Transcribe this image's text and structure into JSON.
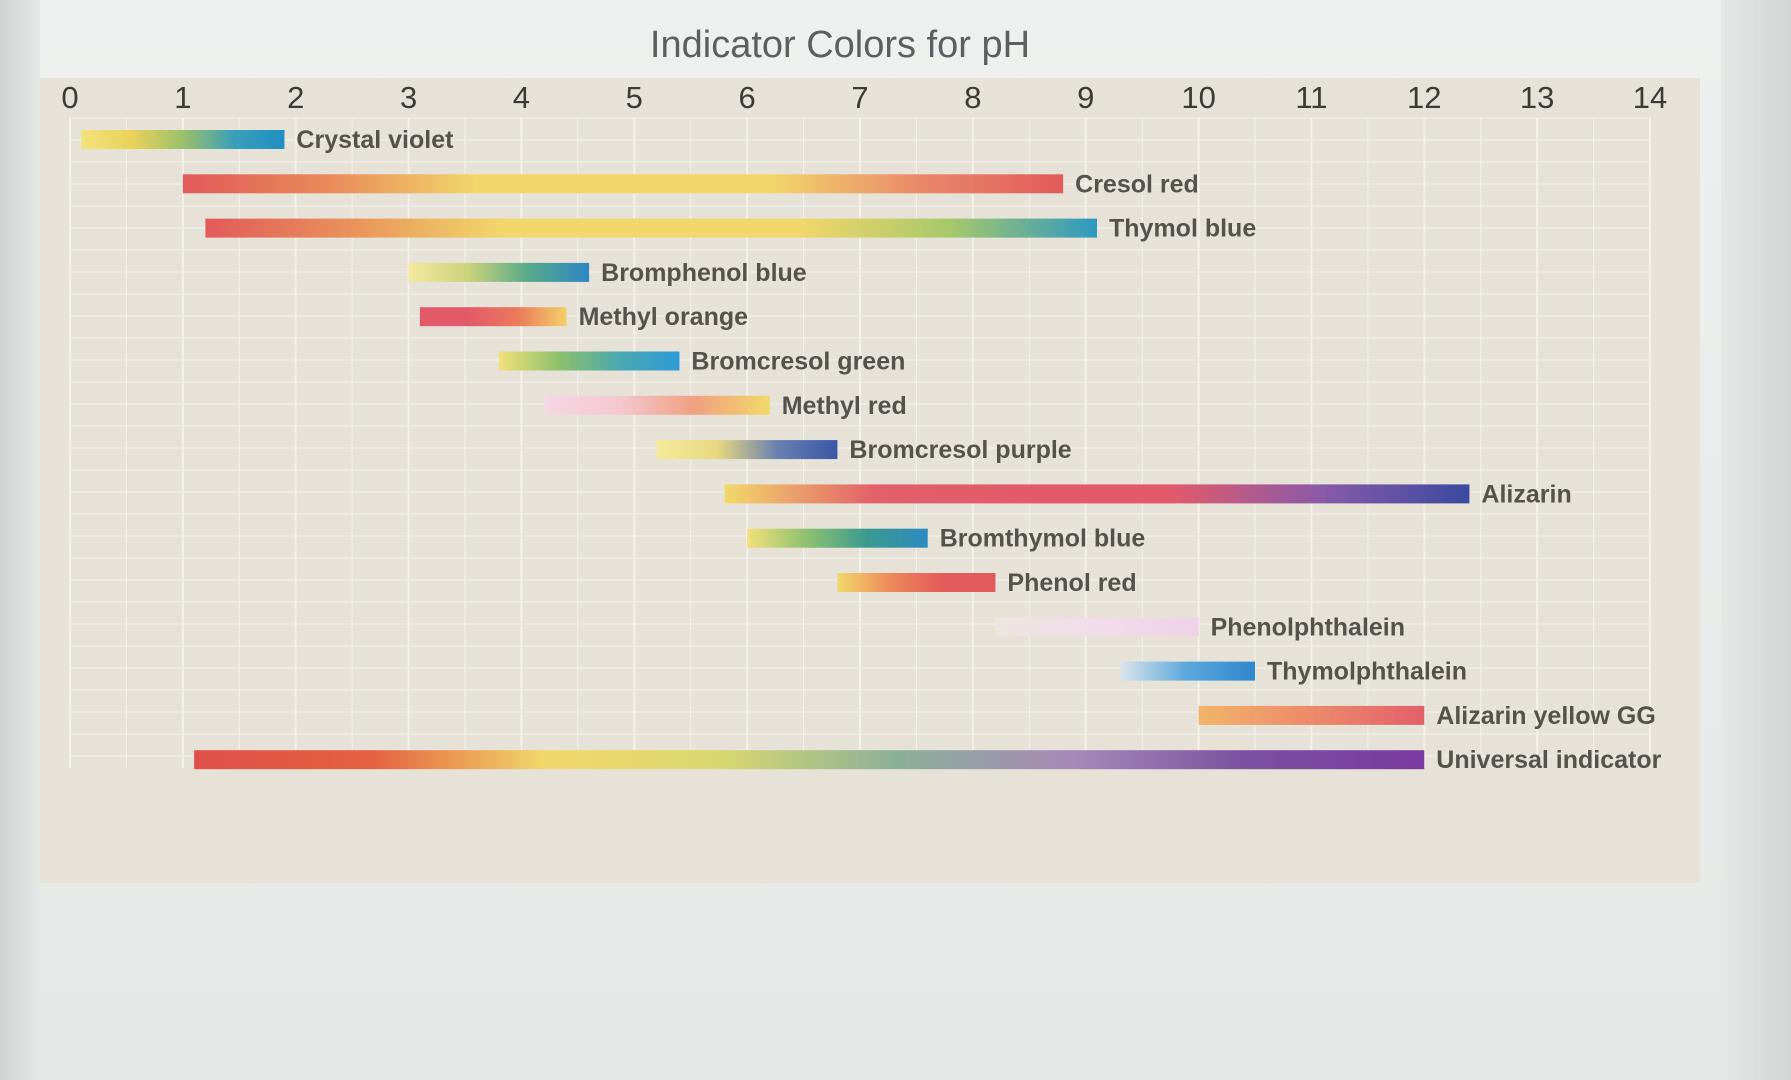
{
  "chart_data": {
    "type": "bar",
    "title": "Indicator Colors for pH",
    "xlim": [
      0,
      14
    ],
    "x_ticks": [
      "0",
      "1",
      "2",
      "3",
      "4",
      "5",
      "6",
      "7",
      "8",
      "9",
      "10",
      "11",
      "12",
      "13",
      "14"
    ],
    "grid": true,
    "series": [
      {
        "name": "Crystal violet",
        "start": 0.1,
        "end": 1.9,
        "colors": [
          "#f2e27a",
          "#e9d25a",
          "#9cc06a",
          "#3a9fb8",
          "#1f8ec3"
        ]
      },
      {
        "name": "Cresol red",
        "start": 1.0,
        "end": 8.8,
        "colors": [
          "#e25a5a",
          "#e98a5a",
          "#f2d76a",
          "#f2d76a",
          "#f2d76a",
          "#e98a6a",
          "#e25a5a"
        ]
      },
      {
        "name": "Thymol blue",
        "start": 1.2,
        "end": 9.1,
        "colors": [
          "#e25a5a",
          "#e9935a",
          "#f2d76a",
          "#f2d76a",
          "#f2d76a",
          "#a8c86a",
          "#2e98c0"
        ]
      },
      {
        "name": "Bromphenol blue",
        "start": 3.0,
        "end": 4.6,
        "colors": [
          "#f5e8a0",
          "#c9d37a",
          "#56a98a",
          "#2e86c4"
        ]
      },
      {
        "name": "Methyl orange",
        "start": 3.1,
        "end": 4.4,
        "colors": [
          "#e25a6a",
          "#e25a6a",
          "#ec7a5a",
          "#f2d06a"
        ]
      },
      {
        "name": "Bromcresol green",
        "start": 3.8,
        "end": 5.4,
        "colors": [
          "#f2e07a",
          "#8cc06a",
          "#4aa8b0",
          "#2e9ad8"
        ]
      },
      {
        "name": "Methyl red",
        "start": 4.2,
        "end": 6.2,
        "colors": [
          "#f4d8e4",
          "#f4c8d0",
          "#f0a080",
          "#f2d86a"
        ]
      },
      {
        "name": "Bromcresol purple",
        "start": 5.2,
        "end": 6.8,
        "colors": [
          "#f5ea9a",
          "#e8d880",
          "#6a80b0",
          "#3a56a8"
        ]
      },
      {
        "name": "Alizarin",
        "start": 5.8,
        "end": 12.4,
        "colors": [
          "#f2d86a",
          "#e2606a",
          "#e25a6a",
          "#e25a6a",
          "#8a5aa8",
          "#3a4aa0"
        ]
      },
      {
        "name": "Bromthymol blue",
        "start": 6.0,
        "end": 7.6,
        "colors": [
          "#f2e07a",
          "#8cc070",
          "#3a9a90",
          "#2e8ac0"
        ]
      },
      {
        "name": "Phenol red",
        "start": 6.8,
        "end": 8.2,
        "colors": [
          "#f2d86a",
          "#ec8a5a",
          "#e25a5a",
          "#e25a5a"
        ]
      },
      {
        "name": "Phenolphthalein",
        "start": 8.2,
        "end": 10.0,
        "colors": [
          "#ece6e0",
          "#f2dcea",
          "#f0d2e6"
        ]
      },
      {
        "name": "Thymolphthalein",
        "start": 9.3,
        "end": 10.5,
        "colors": [
          "#dde4ea",
          "#5aa8dc",
          "#2e88cc"
        ]
      },
      {
        "name": "Alizarin yellow GG",
        "start": 10.0,
        "end": 12.0,
        "colors": [
          "#f2b46a",
          "#ec8a6a",
          "#e2606a"
        ]
      },
      {
        "name": "Universal indicator",
        "start": 1.1,
        "end": 12.0,
        "colors": [
          "#e0504a",
          "#e46040",
          "#f2d86a",
          "#d8d870",
          "#8ab098",
          "#a888b8",
          "#7a50a0",
          "#7a3aa0"
        ]
      }
    ]
  }
}
